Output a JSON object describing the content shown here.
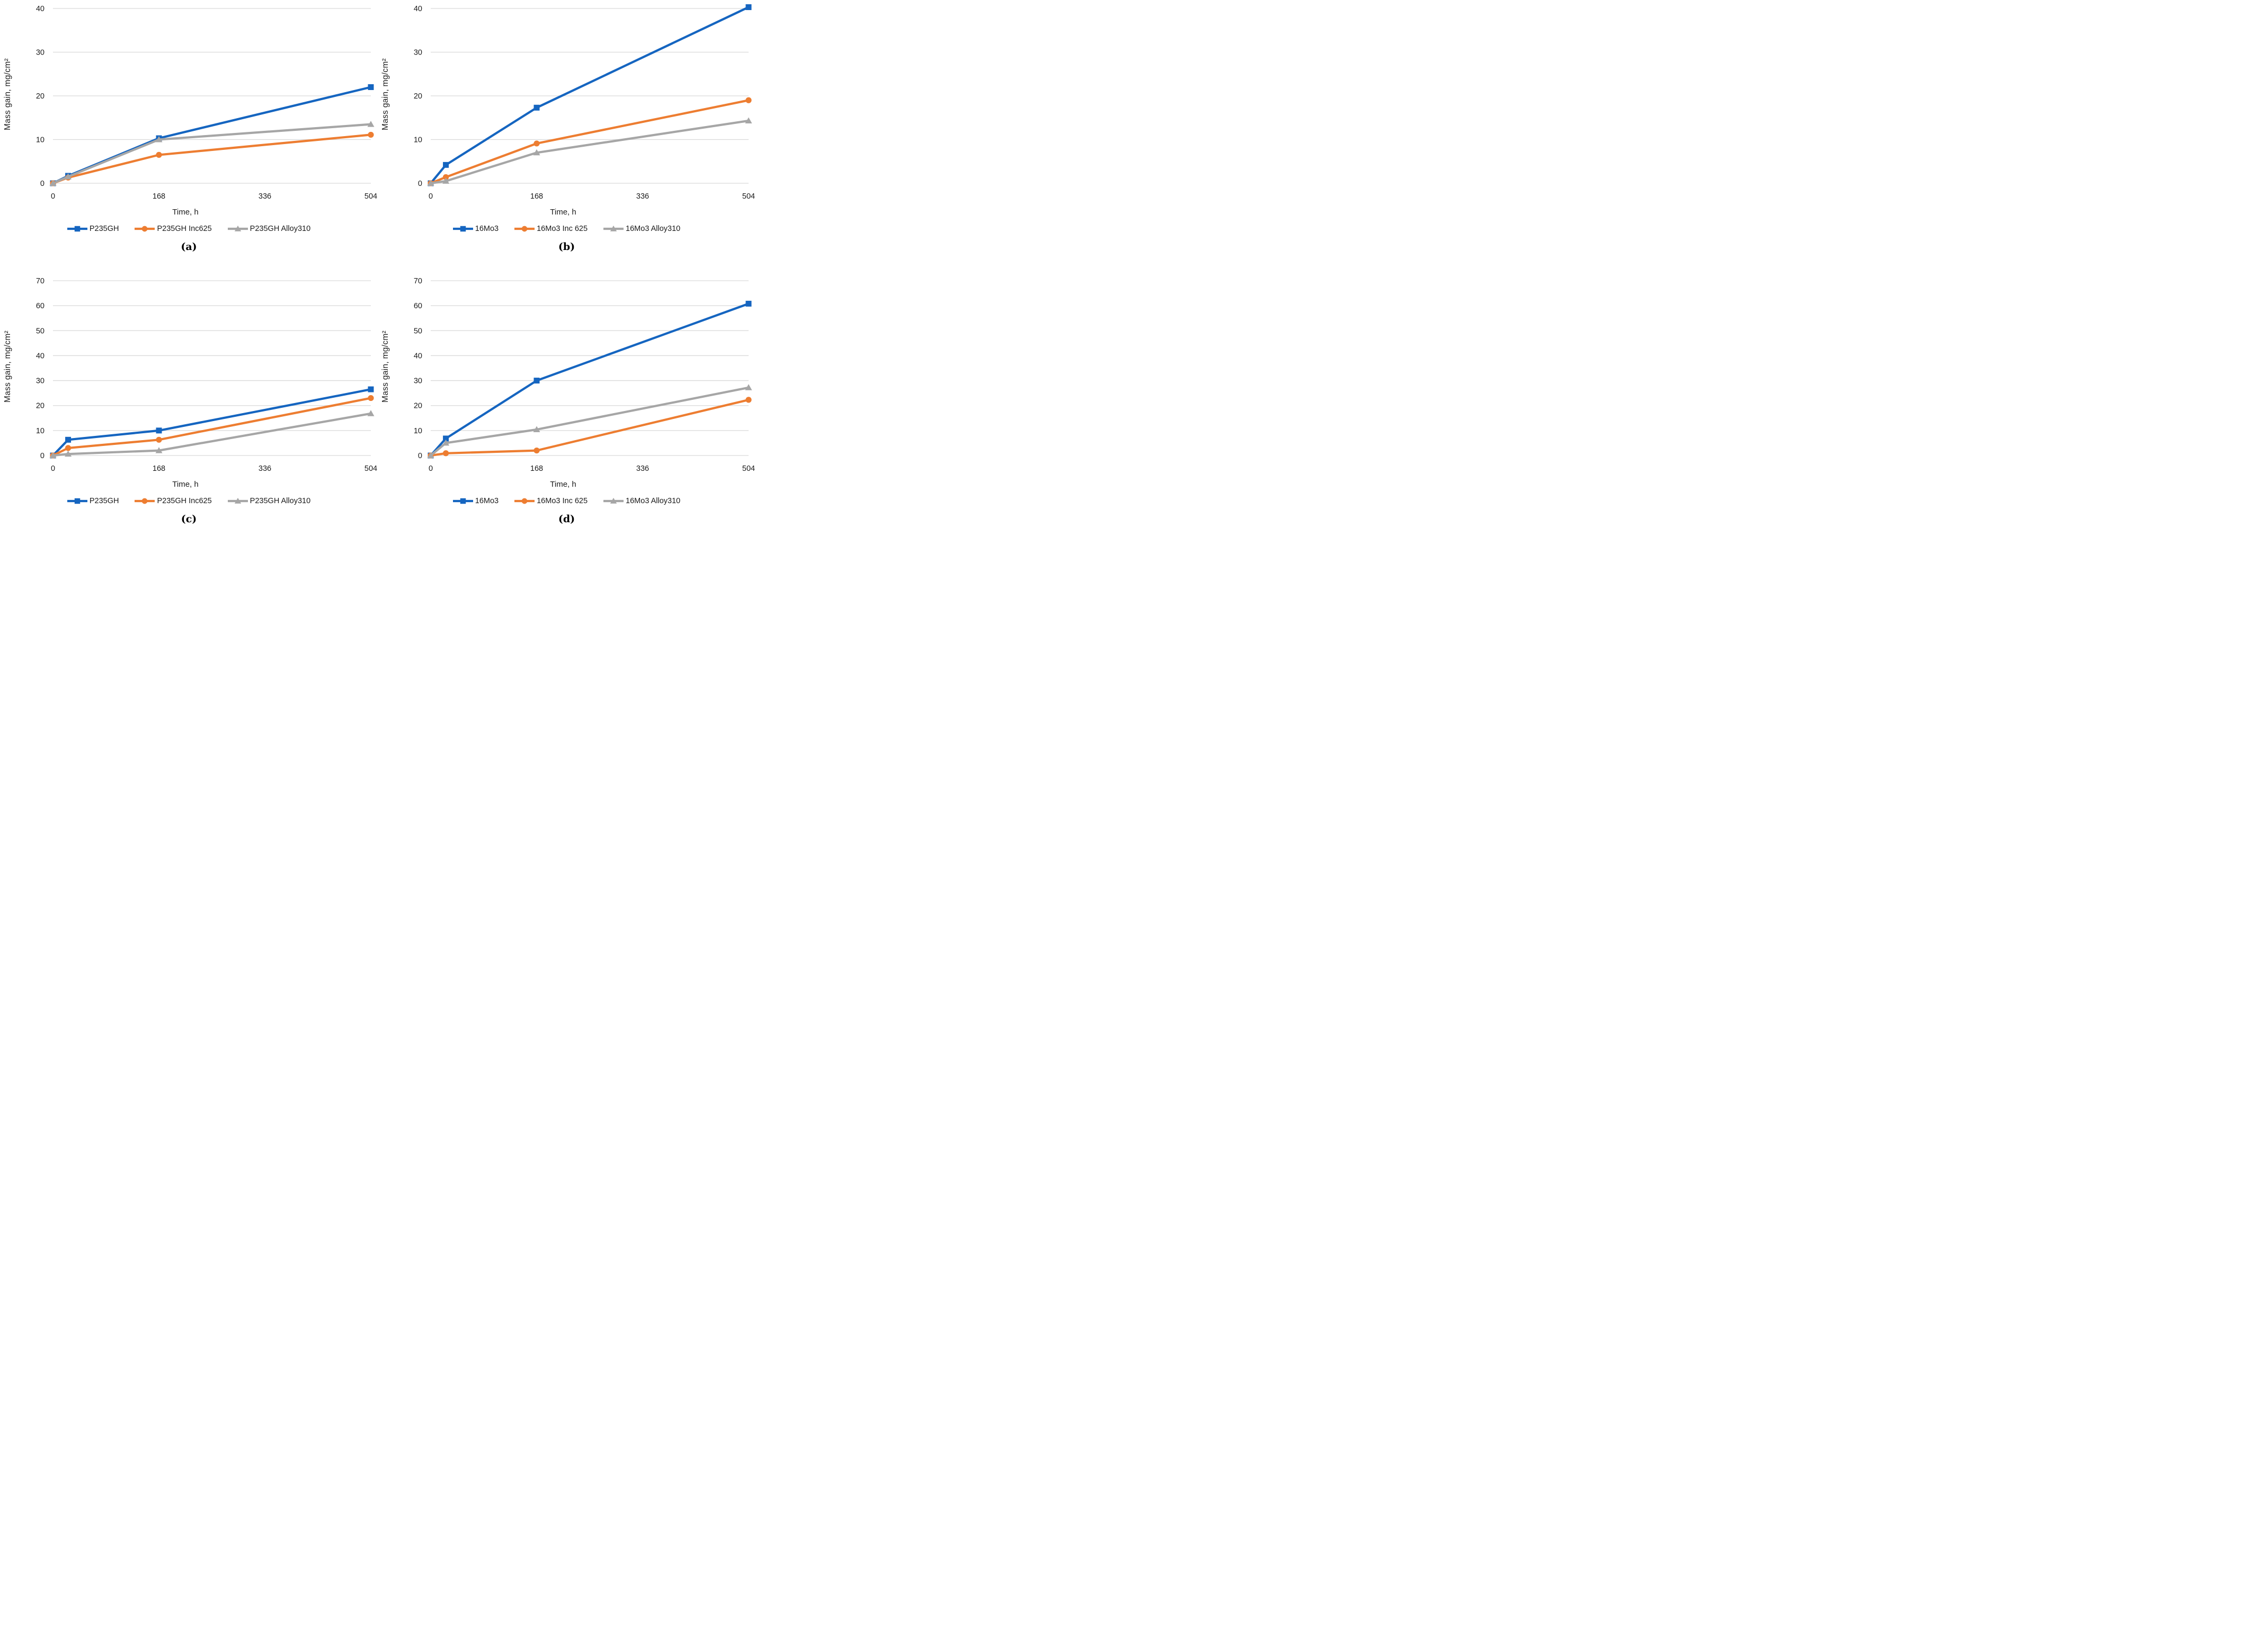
{
  "figure": {
    "grid_color": "#D9D9D9",
    "text_color": "#1a1a1a",
    "background": "#ffffff"
  },
  "chart_data": [
    {
      "type": "line",
      "caption": "(a)",
      "xlabel": "Time, h",
      "ylabel": "Mass gain, mg/cm²",
      "x": [
        0,
        24,
        168,
        504
      ],
      "xticks": [
        0,
        168,
        336,
        504
      ],
      "xlim": [
        0,
        504
      ],
      "ylim": [
        0,
        40
      ],
      "ytick_step": 10,
      "grid": "horizontal",
      "legend_position": "bottom",
      "series": [
        {
          "name": "P235GH",
          "color": "#1565C0",
          "marker": "square",
          "values": [
            0,
            1.7,
            10.3,
            22.0
          ]
        },
        {
          "name": "P235GH Inc625",
          "color": "#ED7D31",
          "marker": "circle",
          "values": [
            0,
            1.3,
            6.5,
            11.1
          ]
        },
        {
          "name": "P235GH Alloy310",
          "color": "#A6A6A6",
          "marker": "triangle",
          "values": [
            0,
            1.5,
            10.0,
            13.5
          ]
        }
      ]
    },
    {
      "type": "line",
      "caption": "(b)",
      "xlabel": "Time, h",
      "ylabel": "Mass gain, mg/cm²",
      "x": [
        0,
        24,
        168,
        504
      ],
      "xticks": [
        0,
        168,
        336,
        504
      ],
      "xlim": [
        0,
        504
      ],
      "ylim": [
        0,
        40
      ],
      "ytick_step": 10,
      "grid": "horizontal",
      "legend_position": "bottom",
      "series": [
        {
          "name": "16Mo3",
          "color": "#1565C0",
          "marker": "square",
          "values": [
            0,
            4.2,
            17.3,
            40.3
          ]
        },
        {
          "name": "16Mo3 Inc 625",
          "color": "#ED7D31",
          "marker": "circle",
          "values": [
            0,
            1.4,
            9.1,
            19.0
          ]
        },
        {
          "name": "16Mo3 Alloy310",
          "color": "#A6A6A6",
          "marker": "triangle",
          "values": [
            0,
            0.5,
            7.0,
            14.3
          ]
        }
      ]
    },
    {
      "type": "line",
      "caption": "(c)",
      "xlabel": "Time, h",
      "ylabel": "Mass gain, mg/cm²",
      "x": [
        0,
        24,
        168,
        504
      ],
      "xticks": [
        0,
        168,
        336,
        504
      ],
      "xlim": [
        0,
        504
      ],
      "ylim": [
        0,
        70
      ],
      "ytick_step": 10,
      "grid": "horizontal",
      "legend_position": "bottom",
      "series": [
        {
          "name": "P235GH",
          "color": "#1565C0",
          "marker": "square",
          "values": [
            0,
            6.3,
            10.0,
            26.5
          ]
        },
        {
          "name": "P235GH Inc625",
          "color": "#ED7D31",
          "marker": "circle",
          "values": [
            0,
            3.0,
            6.3,
            23.0
          ]
        },
        {
          "name": "P235GH Alloy310",
          "color": "#A6A6A6",
          "marker": "triangle",
          "values": [
            0,
            0.6,
            2.0,
            16.8
          ]
        }
      ]
    },
    {
      "type": "line",
      "caption": "(d)",
      "xlabel": "Time, h",
      "ylabel": "Mass gain, mg/cm²",
      "x": [
        0,
        24,
        168,
        504
      ],
      "xticks": [
        0,
        168,
        336,
        504
      ],
      "xlim": [
        0,
        504
      ],
      "ylim": [
        0,
        70
      ],
      "ytick_step": 10,
      "grid": "horizontal",
      "legend_position": "bottom",
      "series": [
        {
          "name": "16Mo3",
          "color": "#1565C0",
          "marker": "square",
          "values": [
            0,
            6.8,
            30.0,
            60.8
          ]
        },
        {
          "name": "16Mo3 Inc 625",
          "color": "#ED7D31",
          "marker": "circle",
          "values": [
            0,
            0.9,
            2.0,
            22.3
          ]
        },
        {
          "name": "16Mo3 Alloy310",
          "color": "#A6A6A6",
          "marker": "triangle",
          "values": [
            0,
            5.0,
            10.4,
            27.2
          ]
        }
      ]
    }
  ]
}
